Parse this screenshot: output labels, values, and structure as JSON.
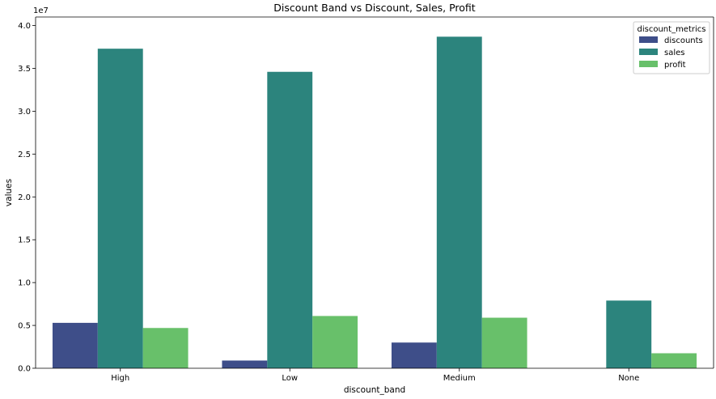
{
  "chart_data": {
    "type": "bar",
    "title": "Discount Band vs Discount, Sales, Profit",
    "xlabel": "discount_band",
    "ylabel": "values",
    "y_offset_label": "1e7",
    "categories": [
      "High",
      "Low",
      "Medium",
      "None"
    ],
    "ylim": [
      0,
      41000000
    ],
    "yticks": [
      0,
      5000000,
      10000000,
      15000000,
      20000000,
      25000000,
      30000000,
      35000000,
      40000000
    ],
    "ytick_labels": [
      "0.0",
      "0.5",
      "1.0",
      "1.5",
      "2.0",
      "2.5",
      "3.0",
      "3.5",
      "4.0"
    ],
    "grid": false,
    "legend": {
      "title": "discount_metrics",
      "position": "top-right"
    },
    "series": [
      {
        "name": "discounts",
        "color": "#3e4e89",
        "values": [
          5300000,
          900000,
          3000000,
          0
        ]
      },
      {
        "name": "sales",
        "color": "#2c847d",
        "values": [
          37300000,
          34600000,
          38700000,
          7900000
        ]
      },
      {
        "name": "profit",
        "color": "#68c06a",
        "values": [
          4700000,
          6100000,
          5900000,
          1750000
        ]
      }
    ]
  }
}
